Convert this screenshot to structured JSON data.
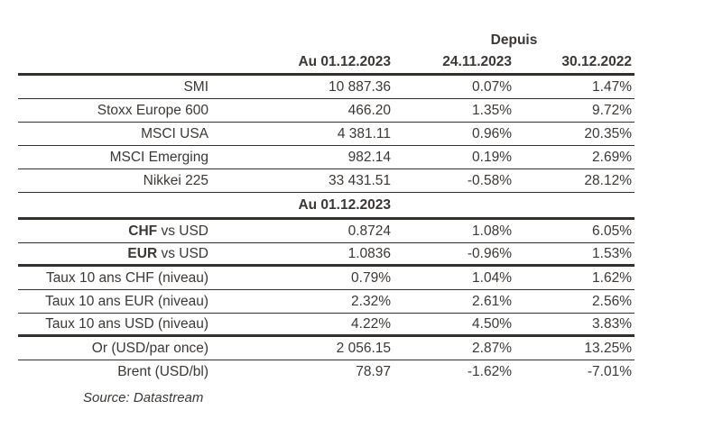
{
  "colors": {
    "text": "#3B3734",
    "rule": "#34302A",
    "background": "#FFFFFF"
  },
  "chart_data": {
    "type": "table",
    "since_label": "Depuis",
    "columns": [
      "Au 01.12.2023",
      "24.11.2023",
      "30.12.2022"
    ],
    "rows": [
      {
        "type": "data",
        "bold": "",
        "label": "SMI",
        "values": [
          "10 887.36",
          "0.07%",
          "1.47%"
        ],
        "line": "thin"
      },
      {
        "type": "data",
        "bold": "",
        "label": "Stoxx Europe 600",
        "values": [
          "466.20",
          "1.35%",
          "9.72%"
        ],
        "line": "thin"
      },
      {
        "type": "data",
        "bold": "",
        "label": "MSCI USA",
        "values": [
          "4 381.11",
          "0.96%",
          "20.35%"
        ],
        "line": "thin"
      },
      {
        "type": "data",
        "bold": "",
        "label": "MSCI Emerging",
        "values": [
          "982.14",
          "0.19%",
          "2.69%"
        ],
        "line": "thin"
      },
      {
        "type": "data",
        "bold": "",
        "label": "Nikkei 225",
        "values": [
          "33 431.51",
          "-0.58%",
          "28.12%"
        ],
        "line": "thin"
      },
      {
        "type": "band",
        "bold": "",
        "label": "Au 01.12.2023",
        "values": [],
        "line": "thick"
      },
      {
        "type": "data",
        "bold": "CHF",
        "label": " vs USD",
        "values": [
          "0.8724",
          "1.08%",
          "6.05%"
        ],
        "line": "thin"
      },
      {
        "type": "data",
        "bold": "EUR",
        "label": " vs USD",
        "values": [
          "1.0836",
          "-0.96%",
          "1.53%"
        ],
        "line": "thick"
      },
      {
        "type": "data",
        "bold": "",
        "label": "Taux 10 ans CHF (niveau)",
        "values": [
          "0.79%",
          "1.04%",
          "1.62%"
        ],
        "line": "thin"
      },
      {
        "type": "data",
        "bold": "",
        "label": "Taux 10 ans EUR (niveau)",
        "values": [
          "2.32%",
          "2.61%",
          "2.56%"
        ],
        "line": "thin"
      },
      {
        "type": "data",
        "bold": "",
        "label": "Taux 10 ans USD (niveau)",
        "values": [
          "4.22%",
          "4.50%",
          "3.83%"
        ],
        "line": "thick"
      },
      {
        "type": "data",
        "bold": "",
        "label": "Or (USD/par once)",
        "values": [
          "2 056.15",
          "2.87%",
          "13.25%"
        ],
        "line": "thin"
      },
      {
        "type": "data",
        "bold": "",
        "label": "Brent (USD/bl)",
        "values": [
          "78.97",
          "-1.62%",
          "-7.01%"
        ],
        "line": "none"
      }
    ],
    "source": "Source: Datastream"
  }
}
